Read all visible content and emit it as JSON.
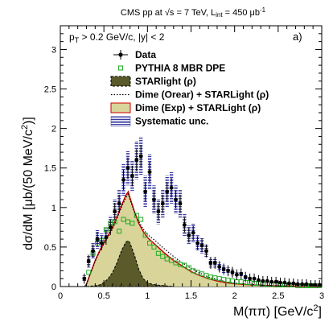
{
  "chart_data": {
    "type": "scatter",
    "title": "CMS pp at √s = 7 TeV, L",
    "title_sub": "int",
    "title_tail": " = 450 μb",
    "title_exp": "-1",
    "panel_label": "a)",
    "cuts_pt": "p",
    "cuts_pt_sub": "T",
    "cuts_rest": " > 0.2 GeV/c, |y| < 2",
    "xlabel": "M(ππ) [GeV/c",
    "xlabel_exp": "2",
    "xlabel_tail": "]",
    "ylabel": "dσ/dM [μb/(50 MeV/c",
    "ylabel_exp": "2",
    "ylabel_tail": ")]",
    "xlim": [
      0,
      3
    ],
    "ylim": [
      0,
      3.3
    ],
    "x_ticks": [
      0,
      0.5,
      1,
      1.5,
      2,
      2.5,
      3
    ],
    "x_tick_labels": [
      "0",
      "0.5",
      "1",
      "1.5",
      "2",
      "2.5",
      "3"
    ],
    "y_ticks": [
      0,
      0.5,
      1,
      1.5,
      2,
      2.5,
      3
    ],
    "y_tick_labels": [
      "0",
      "0.5",
      "1",
      "1.5",
      "2",
      "2.5",
      "3"
    ],
    "legend_position": "top-right",
    "legend": [
      {
        "label": "Data",
        "style": "data"
      },
      {
        "label": "PYTHIA 8 MBR DPE",
        "style": "pythia"
      },
      {
        "label": "STARlight (ρ)",
        "style": "starlight"
      },
      {
        "label": "Dime (Orear) + STARLight (ρ)",
        "style": "orear"
      },
      {
        "label": "Dime (Exp) + STARLight (ρ)",
        "style": "exp"
      },
      {
        "label": "Systematic unc.",
        "style": "syst"
      }
    ],
    "colors": {
      "data": "#000000",
      "pythia": "#22aa22",
      "starlight_fill": "#5a5a2a",
      "exp_fill": "#d8d49a",
      "exp_line": "#cc0000",
      "orear_line": "#000000",
      "syst": "#3a3aa0"
    },
    "series": [
      {
        "name": "Data",
        "x": [
          0.275,
          0.325,
          0.375,
          0.425,
          0.475,
          0.525,
          0.575,
          0.625,
          0.675,
          0.725,
          0.775,
          0.825,
          0.875,
          0.925,
          0.975,
          1.025,
          1.075,
          1.125,
          1.175,
          1.225,
          1.275,
          1.325,
          1.375,
          1.425,
          1.475,
          1.525,
          1.575,
          1.625,
          1.675,
          1.725,
          1.775,
          1.825,
          1.875,
          1.925,
          1.975,
          2.025,
          2.075,
          2.125,
          2.175,
          2.225,
          2.275,
          2.325,
          2.375,
          2.425,
          2.475,
          2.525,
          2.575,
          2.625,
          2.675,
          2.725,
          2.775,
          2.825,
          2.875,
          2.925,
          2.975
        ],
        "y": [
          0.1,
          0.32,
          0.45,
          0.6,
          0.55,
          0.62,
          0.75,
          0.95,
          1.05,
          1.35,
          1.5,
          1.4,
          1.6,
          1.65,
          1.2,
          1.45,
          1.1,
          0.95,
          1.05,
          1.2,
          1.25,
          1.1,
          1.05,
          0.78,
          0.65,
          0.68,
          0.55,
          0.52,
          0.45,
          0.3,
          0.3,
          0.25,
          0.22,
          0.2,
          0.18,
          0.15,
          0.16,
          0.12,
          0.1,
          0.1,
          0.08,
          0.07,
          0.07,
          0.06,
          0.06,
          0.05,
          0.05,
          0.04,
          0.04,
          0.03,
          0.03,
          0.03,
          0.02,
          0.02,
          0.02
        ],
        "syst_err": [
          0.04,
          0.08,
          0.1,
          0.12,
          0.12,
          0.12,
          0.14,
          0.16,
          0.18,
          0.2,
          0.22,
          0.2,
          0.24,
          0.24,
          0.2,
          0.22,
          0.18,
          0.16,
          0.18,
          0.2,
          0.2,
          0.18,
          0.18,
          0.14,
          0.12,
          0.12,
          0.1,
          0.1,
          0.08,
          0.06,
          0.06,
          0.05,
          0.05,
          0.04,
          0.04,
          0.03,
          0.03,
          0.03,
          0.02,
          0.02,
          0.02,
          0.02,
          0.02,
          0.01,
          0.01,
          0.01,
          0.01,
          0.01,
          0.01,
          0.01,
          0.01,
          0.01,
          0.01,
          0.01,
          0.01
        ]
      },
      {
        "name": "PYTHIA 8 MBR DPE",
        "x": [
          0.325,
          0.375,
          0.425,
          0.475,
          0.525,
          0.575,
          0.625,
          0.675,
          0.725,
          0.775,
          0.825,
          0.875,
          0.925,
          0.975,
          1.025,
          1.075,
          1.125,
          1.175,
          1.225,
          1.275,
          1.325,
          1.375,
          1.425,
          1.475,
          1.525,
          1.575,
          1.625,
          1.675,
          1.725,
          1.775,
          1.825,
          1.875,
          1.925,
          1.975,
          2.025,
          2.075,
          2.125,
          2.175,
          2.225,
          2.275,
          2.325,
          2.375,
          2.425,
          2.475,
          2.525,
          2.575,
          2.625,
          2.675,
          2.725,
          2.775,
          2.825,
          2.875,
          2.925,
          2.975
        ],
        "y": [
          0.18,
          0.42,
          0.55,
          0.58,
          0.72,
          0.8,
          0.82,
          0.7,
          0.85,
          0.82,
          0.8,
          0.9,
          0.85,
          0.65,
          0.55,
          0.5,
          0.42,
          0.38,
          0.35,
          0.33,
          0.3,
          0.28,
          0.27,
          0.24,
          0.2,
          0.18,
          0.16,
          0.14,
          0.12,
          0.11,
          0.1,
          0.09,
          0.08,
          0.07,
          0.06,
          0.06,
          0.05,
          0.05,
          0.04,
          0.04,
          0.03,
          0.03,
          0.03,
          0.02,
          0.02,
          0.02,
          0.02,
          0.02,
          0.01,
          0.01,
          0.01,
          0.01,
          0.01,
          0.01
        ]
      },
      {
        "name": "STARlight (ρ)",
        "x": [
          0.3,
          0.35,
          0.4,
          0.45,
          0.5,
          0.55,
          0.6,
          0.65,
          0.7,
          0.75,
          0.78,
          0.8,
          0.85,
          0.9,
          0.95,
          1.0,
          1.05,
          1.1,
          1.2,
          1.3
        ],
        "y": [
          0,
          0.005,
          0.01,
          0.02,
          0.05,
          0.1,
          0.18,
          0.3,
          0.45,
          0.56,
          0.58,
          0.55,
          0.4,
          0.22,
          0.1,
          0.05,
          0.03,
          0.02,
          0.01,
          0
        ]
      },
      {
        "name": "Dime (Exp) + STARLight (ρ)",
        "x": [
          0.28,
          0.3,
          0.35,
          0.4,
          0.45,
          0.5,
          0.55,
          0.6,
          0.65,
          0.7,
          0.75,
          0.78,
          0.8,
          0.85,
          0.9,
          0.95,
          1.0,
          1.1,
          1.2,
          1.3,
          1.4,
          1.5,
          1.6,
          1.7,
          1.8,
          1.9,
          2.0,
          2.2,
          2.4,
          2.6,
          2.8,
          3.0
        ],
        "y": [
          0,
          0.03,
          0.18,
          0.33,
          0.45,
          0.55,
          0.65,
          0.75,
          0.88,
          1.02,
          1.15,
          1.2,
          1.12,
          0.95,
          0.8,
          0.7,
          0.62,
          0.52,
          0.42,
          0.33,
          0.26,
          0.19,
          0.14,
          0.1,
          0.07,
          0.05,
          0.035,
          0.02,
          0.01,
          0.006,
          0.003,
          0.001
        ]
      },
      {
        "name": "Dime (Orear) + STARLight (ρ)",
        "x": [
          0.28,
          0.3,
          0.35,
          0.4,
          0.45,
          0.5,
          0.55,
          0.6,
          0.65,
          0.7,
          0.75,
          0.78,
          0.8,
          0.85,
          0.9,
          0.95,
          1.0,
          1.1,
          1.2,
          1.3,
          1.4,
          1.5,
          1.6,
          1.7,
          1.8,
          1.9,
          2.0,
          2.2,
          2.4,
          2.6,
          2.8,
          3.0
        ],
        "y": [
          0,
          0.03,
          0.18,
          0.32,
          0.44,
          0.54,
          0.63,
          0.73,
          0.86,
          1.0,
          1.12,
          1.17,
          1.1,
          0.95,
          0.82,
          0.73,
          0.66,
          0.57,
          0.47,
          0.38,
          0.3,
          0.23,
          0.17,
          0.12,
          0.09,
          0.06,
          0.045,
          0.025,
          0.013,
          0.007,
          0.004,
          0.002
        ]
      }
    ]
  }
}
